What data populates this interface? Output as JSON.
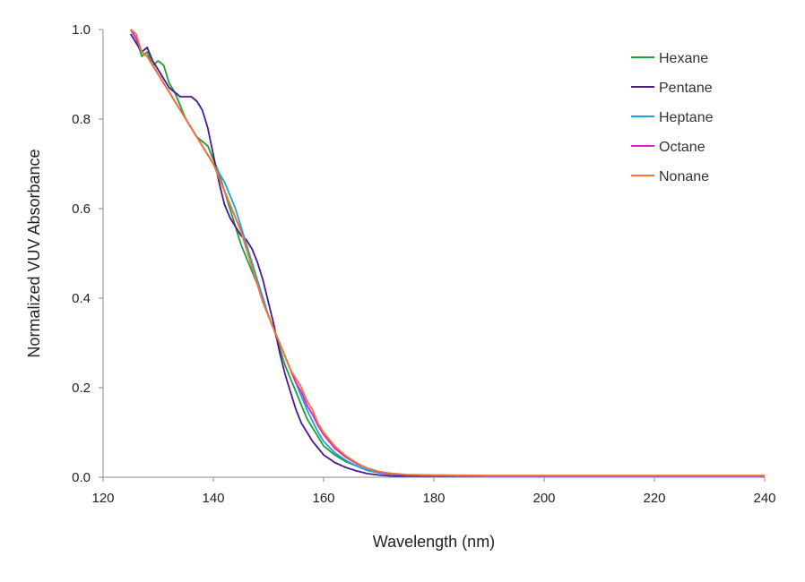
{
  "chart_data": {
    "type": "line",
    "title": "",
    "xlabel": "Wavelength (nm)",
    "ylabel": "Normalized VUV Absorbance",
    "xlim": [
      120,
      240
    ],
    "ylim": [
      0,
      1.0
    ],
    "x_ticks": [
      120,
      140,
      160,
      180,
      200,
      220,
      240
    ],
    "x_tick_labels": [
      "120",
      "140",
      "160",
      "180",
      "200",
      "220",
      "240"
    ],
    "y_ticks": [
      0,
      0.2,
      0.4,
      0.6,
      0.8,
      1.0
    ],
    "y_tick_labels": [
      "0.0",
      "0.2",
      "0.4",
      "0.6",
      "0.8",
      "1.0"
    ],
    "grid": false,
    "legend_position": "top-right",
    "series": [
      {
        "name": "Hexane",
        "color": "#1fa03c",
        "x": [
          125,
          126,
          127,
          128,
          129,
          130,
          131,
          132,
          133,
          134,
          135,
          136,
          137,
          138,
          139,
          140,
          141,
          142,
          143,
          144,
          145,
          146,
          147,
          148,
          149,
          150,
          151,
          152,
          153,
          154,
          155,
          156,
          157,
          158,
          159,
          160,
          162,
          164,
          166,
          168,
          170,
          172,
          175,
          180,
          190,
          200,
          210,
          220,
          230,
          240
        ],
        "y": [
          1.0,
          0.98,
          0.94,
          0.95,
          0.92,
          0.93,
          0.92,
          0.88,
          0.86,
          0.83,
          0.8,
          0.78,
          0.76,
          0.75,
          0.74,
          0.71,
          0.68,
          0.64,
          0.6,
          0.56,
          0.52,
          0.49,
          0.46,
          0.43,
          0.4,
          0.36,
          0.33,
          0.29,
          0.25,
          0.22,
          0.19,
          0.16,
          0.13,
          0.11,
          0.09,
          0.07,
          0.05,
          0.035,
          0.025,
          0.015,
          0.01,
          0.007,
          0.005,
          0.004,
          0.003,
          0.003,
          0.003,
          0.003,
          0.003,
          0.003
        ]
      },
      {
        "name": "Pentane",
        "color": "#4b1a8c",
        "x": [
          125,
          126,
          127,
          128,
          129,
          130,
          131,
          132,
          133,
          134,
          135,
          136,
          137,
          138,
          139,
          140,
          141,
          142,
          143,
          144,
          145,
          146,
          147,
          148,
          149,
          150,
          151,
          152,
          153,
          154,
          155,
          156,
          157,
          158,
          159,
          160,
          162,
          164,
          166,
          168,
          170,
          172,
          175,
          180,
          190,
          200,
          210,
          220,
          230,
          240
        ],
        "y": [
          0.99,
          0.97,
          0.95,
          0.96,
          0.93,
          0.91,
          0.89,
          0.87,
          0.86,
          0.85,
          0.85,
          0.85,
          0.84,
          0.82,
          0.78,
          0.72,
          0.66,
          0.61,
          0.58,
          0.56,
          0.54,
          0.53,
          0.51,
          0.48,
          0.44,
          0.39,
          0.34,
          0.28,
          0.23,
          0.19,
          0.15,
          0.12,
          0.1,
          0.08,
          0.065,
          0.05,
          0.033,
          0.022,
          0.014,
          0.008,
          0.005,
          0.003,
          0.002,
          0.002,
          0.002,
          0.002,
          0.002,
          0.002,
          0.002,
          0.002
        ]
      },
      {
        "name": "Heptane",
        "color": "#1aa3dc",
        "x": [
          125,
          126,
          127,
          128,
          129,
          130,
          131,
          132,
          133,
          134,
          135,
          136,
          137,
          138,
          139,
          140,
          141,
          142,
          143,
          144,
          145,
          146,
          147,
          148,
          149,
          150,
          151,
          152,
          153,
          154,
          155,
          156,
          157,
          158,
          159,
          160,
          162,
          164,
          166,
          168,
          170,
          172,
          175,
          180,
          190,
          200,
          210,
          220,
          230,
          240
        ],
        "y": [
          1.0,
          0.98,
          0.95,
          0.94,
          0.92,
          0.9,
          0.88,
          0.86,
          0.84,
          0.82,
          0.8,
          0.78,
          0.76,
          0.74,
          0.72,
          0.7,
          0.68,
          0.66,
          0.63,
          0.6,
          0.56,
          0.52,
          0.48,
          0.44,
          0.4,
          0.36,
          0.33,
          0.3,
          0.27,
          0.24,
          0.21,
          0.18,
          0.15,
          0.125,
          0.1,
          0.08,
          0.055,
          0.038,
          0.025,
          0.016,
          0.01,
          0.007,
          0.005,
          0.004,
          0.003,
          0.003,
          0.003,
          0.003,
          0.003,
          0.003
        ]
      },
      {
        "name": "Octane",
        "color": "#e020d0",
        "x": [
          125,
          126,
          127,
          128,
          129,
          130,
          131,
          132,
          133,
          134,
          135,
          136,
          137,
          138,
          139,
          140,
          141,
          142,
          143,
          144,
          145,
          146,
          147,
          148,
          149,
          150,
          151,
          152,
          153,
          154,
          155,
          156,
          157,
          158,
          159,
          160,
          162,
          164,
          166,
          168,
          170,
          172,
          175,
          180,
          190,
          200,
          210,
          220,
          230,
          240
        ],
        "y": [
          1.0,
          0.98,
          0.95,
          0.94,
          0.92,
          0.9,
          0.88,
          0.86,
          0.84,
          0.82,
          0.8,
          0.78,
          0.76,
          0.74,
          0.72,
          0.7,
          0.67,
          0.64,
          0.61,
          0.58,
          0.55,
          0.51,
          0.47,
          0.43,
          0.39,
          0.36,
          0.33,
          0.3,
          0.27,
          0.24,
          0.21,
          0.19,
          0.16,
          0.14,
          0.115,
          0.095,
          0.065,
          0.045,
          0.03,
          0.02,
          0.012,
          0.008,
          0.005,
          0.004,
          0.003,
          0.003,
          0.003,
          0.003,
          0.003,
          0.003
        ]
      },
      {
        "name": "Nonane",
        "color": "#f07830",
        "x": [
          125,
          126,
          127,
          128,
          129,
          130,
          131,
          132,
          133,
          134,
          135,
          136,
          137,
          138,
          139,
          140,
          141,
          142,
          143,
          144,
          145,
          146,
          147,
          148,
          149,
          150,
          151,
          152,
          153,
          154,
          155,
          156,
          157,
          158,
          159,
          160,
          162,
          164,
          166,
          168,
          170,
          172,
          175,
          180,
          190,
          200,
          210,
          220,
          230,
          240
        ],
        "y": [
          1.0,
          0.99,
          0.95,
          0.94,
          0.92,
          0.9,
          0.88,
          0.86,
          0.84,
          0.82,
          0.8,
          0.78,
          0.76,
          0.74,
          0.72,
          0.7,
          0.67,
          0.64,
          0.61,
          0.58,
          0.55,
          0.51,
          0.47,
          0.43,
          0.39,
          0.36,
          0.33,
          0.3,
          0.27,
          0.24,
          0.22,
          0.2,
          0.17,
          0.15,
          0.12,
          0.1,
          0.07,
          0.048,
          0.032,
          0.02,
          0.013,
          0.009,
          0.006,
          0.005,
          0.004,
          0.004,
          0.004,
          0.004,
          0.004,
          0.004
        ]
      }
    ]
  }
}
